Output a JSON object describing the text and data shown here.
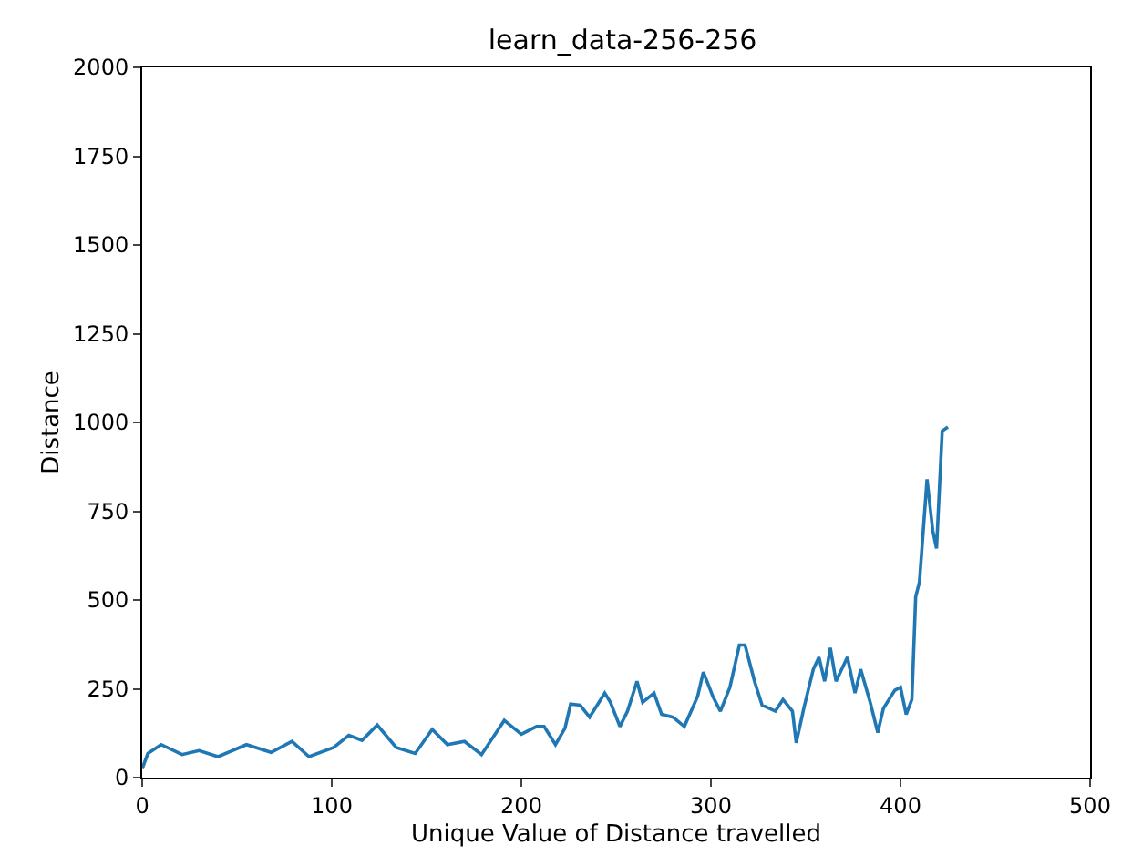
{
  "chart_data": {
    "type": "line",
    "title": "learn_data-256-256",
    "xlabel": "Unique Value of Distance travelled",
    "ylabel": "Distance",
    "xlim": [
      0,
      500
    ],
    "xticks": [
      0,
      100,
      200,
      300,
      400,
      500
    ],
    "ylim": [
      0,
      2000
    ],
    "yticks": [
      0,
      250,
      500,
      750,
      1000,
      1250,
      1500,
      1750,
      2000
    ],
    "legend": false,
    "marker": "none",
    "line_style": "solid",
    "series": [
      {
        "color": "#1f77b4",
        "x": [
          0,
          3,
          10,
          21,
          30,
          40,
          55,
          68,
          79,
          88,
          101,
          109,
          116,
          124,
          134,
          144,
          153,
          161,
          170,
          179,
          191,
          200,
          208,
          212,
          218,
          223,
          226,
          231,
          236,
          244,
          247,
          252,
          256,
          261,
          264,
          270,
          274,
          280,
          286,
          293,
          296,
          301,
          305,
          310,
          315,
          318,
          323,
          327,
          334,
          338,
          343,
          345,
          349,
          354,
          357,
          360,
          363,
          366,
          372,
          376,
          379,
          384,
          388,
          391,
          397,
          400,
          403,
          406,
          408,
          410,
          414,
          417,
          419,
          420,
          422,
          425
        ],
        "values": [
          25,
          68,
          93,
          65,
          76,
          59,
          93,
          71,
          102,
          59,
          85,
          119,
          105,
          148,
          85,
          68,
          136,
          93,
          102,
          65,
          161,
          122,
          144,
          144,
          93,
          139,
          207,
          204,
          170,
          238,
          212,
          144,
          187,
          271,
          212,
          238,
          178,
          170,
          144,
          229,
          297,
          229,
          187,
          254,
          373,
          373,
          271,
          204,
          187,
          220,
          187,
          98,
          195,
          305,
          339,
          271,
          365,
          271,
          339,
          238,
          305,
          212,
          127,
          195,
          246,
          254,
          178,
          220,
          509,
          551,
          840,
          696,
          645,
          755,
          976,
          987
        ]
      }
    ]
  }
}
